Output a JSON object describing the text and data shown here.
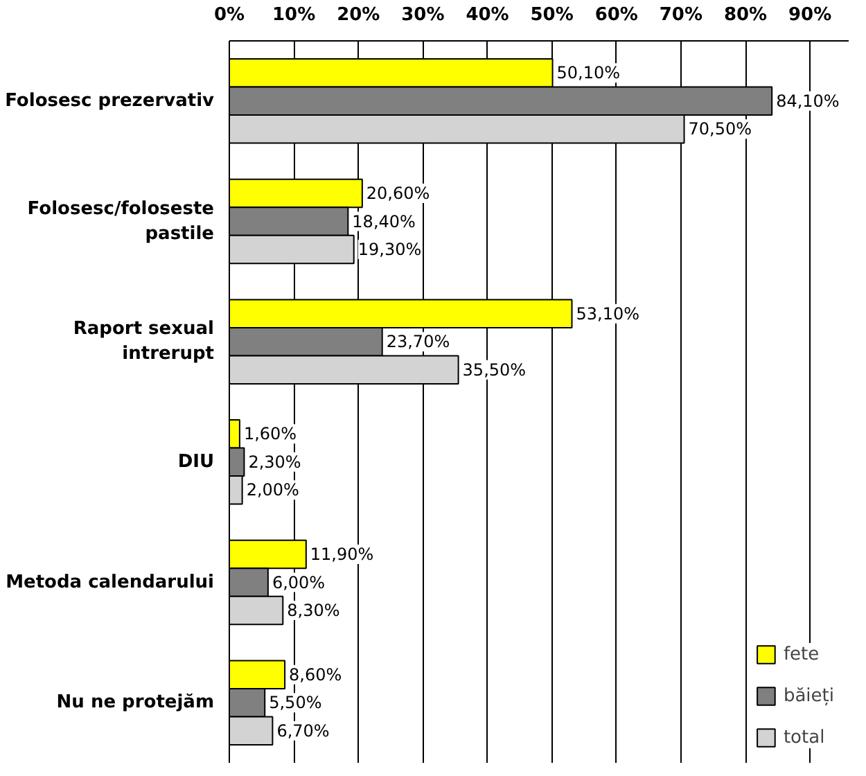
{
  "chart_data": {
    "type": "bar",
    "orientation": "horizontal",
    "categories": [
      "Folosesc prezervativ",
      "Folosesc/foloseste pastile",
      "Raport sexual intrerupt",
      "DIU",
      "Metoda calendarului",
      "Nu ne protejăm"
    ],
    "series": [
      {
        "name": "fete",
        "color": "#ffff00",
        "values": [
          50.1,
          20.6,
          53.1,
          1.6,
          11.9,
          8.6
        ],
        "value_labels": [
          "50,10%",
          "20,60%",
          "53,10%",
          "1,60%",
          "11,90%",
          "8,60%"
        ]
      },
      {
        "name": "băieți",
        "color": "#808080",
        "values": [
          84.1,
          18.4,
          23.7,
          2.3,
          6.0,
          5.5
        ],
        "value_labels": [
          "84,10%",
          "18,40%",
          "23,70%",
          "2,30%",
          "6,00%",
          "5,50%"
        ]
      },
      {
        "name": "total",
        "color": "#d3d3d3",
        "values": [
          70.5,
          19.3,
          35.5,
          2.0,
          8.3,
          6.7
        ],
        "value_labels": [
          "70,50%",
          "19,30%",
          "35,50%",
          "2,00%",
          "8,30%",
          "6,70%"
        ]
      }
    ],
    "xlim": [
      0,
      96
    ],
    "xticks": [
      {
        "value": 0,
        "label": "0%"
      },
      {
        "value": 10,
        "label": "10%"
      },
      {
        "value": 20,
        "label": "20%"
      },
      {
        "value": 30,
        "label": "30%"
      },
      {
        "value": 40,
        "label": "40%"
      },
      {
        "value": 50,
        "label": "50%"
      },
      {
        "value": 60,
        "label": "60%"
      },
      {
        "value": 70,
        "label": "70%"
      },
      {
        "value": 80,
        "label": "80%"
      },
      {
        "value": 90,
        "label": "90%"
      }
    ],
    "grid": "x",
    "legend": "bottom right"
  }
}
